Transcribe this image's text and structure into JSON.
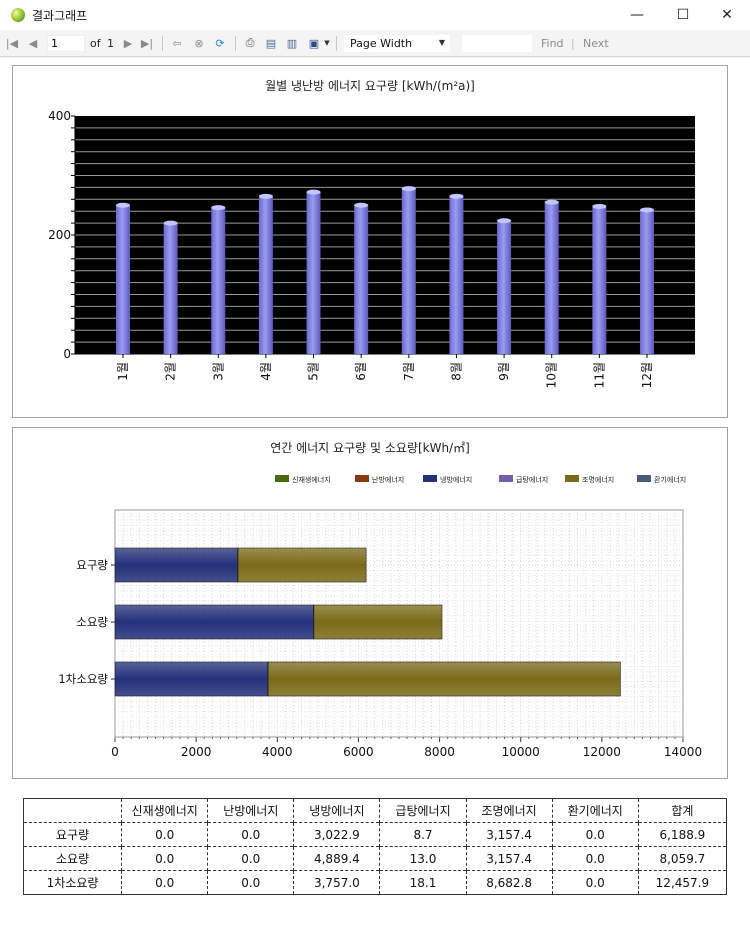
{
  "window": {
    "title": "결과그래프",
    "controls": {
      "minimize": "—",
      "maximize": "☐",
      "close": "✕"
    }
  },
  "toolbar": {
    "page_value": "1",
    "of_label": "of",
    "total_pages": "1",
    "zoom": "Page Width",
    "find_label": "Find",
    "next_label": "Next",
    "icons": [
      "first-page-icon",
      "prev-page-icon",
      "next-page-icon",
      "last-page-icon",
      "back-icon",
      "stop-icon",
      "refresh-icon",
      "print-icon",
      "page-layout-icon",
      "page-setup-icon",
      "export-icon"
    ]
  },
  "colors": {
    "bar_fill": "#9b9bf0",
    "plot_bg": "#000000",
    "series": [
      "#4a6a10",
      "#8b3a10",
      "#24307a",
      "#7060a8",
      "#7a6a18",
      "#4a5a78"
    ]
  },
  "chart1": {
    "title": "월별 냉난방 에너지 요구량 [kWh/(m²a)]",
    "y_ticks": [
      "400",
      "200",
      "0"
    ]
  },
  "chart2": {
    "title": "연간 에너지 요구량 및 소요량[kWh/㎡]",
    "legend": [
      "신재생에너지",
      "난방에너지",
      "냉방에너지",
      "급탕에너지",
      "조명에너지",
      "환기에너지"
    ],
    "x_ticks": [
      "0",
      "2000",
      "4000",
      "6000",
      "8000",
      "10000",
      "12000",
      "14000"
    ]
  },
  "chart_data": [
    {
      "type": "bar",
      "title": "월별 냉난방 에너지 요구량 [kWh/(m²a)]",
      "categories": [
        "1월",
        "2월",
        "3월",
        "4월",
        "5월",
        "6월",
        "7월",
        "8월",
        "9월",
        "10월",
        "11월",
        "12월"
      ],
      "values": [
        250,
        220,
        246,
        265,
        272,
        250,
        278,
        265,
        224,
        255,
        248,
        242
      ],
      "ylim": [
        0,
        400
      ],
      "grid": true
    },
    {
      "type": "bar",
      "orientation": "horizontal",
      "stacked": true,
      "title": "연간 에너지 요구량 및 소요량[kWh/㎡]",
      "categories": [
        "요구량",
        "소요량",
        "1차소요량"
      ],
      "series": [
        {
          "name": "신재생에너지",
          "values": [
            0.0,
            0.0,
            0.0
          ]
        },
        {
          "name": "난방에너지",
          "values": [
            0.0,
            0.0,
            0.0
          ]
        },
        {
          "name": "냉방에너지",
          "values": [
            3022.9,
            4889.4,
            3757.0
          ]
        },
        {
          "name": "급탕에너지",
          "values": [
            8.7,
            13.0,
            18.1
          ]
        },
        {
          "name": "조명에너지",
          "values": [
            3157.4,
            3157.4,
            8682.8
          ]
        },
        {
          "name": "환기에너지",
          "values": [
            0.0,
            0.0,
            0.0
          ]
        }
      ],
      "xlim": [
        0,
        14000
      ],
      "legend_position": "top-right",
      "grid": true
    }
  ],
  "table": {
    "headers": [
      "",
      "신재생에너지",
      "난방에너지",
      "냉방에너지",
      "급탕에너지",
      "조명에너지",
      "환기에너지",
      "합계"
    ],
    "rows": [
      [
        "요구량",
        "0.0",
        "0.0",
        "3,022.9",
        "8.7",
        "3,157.4",
        "0.0",
        "6,188.9"
      ],
      [
        "소요량",
        "0.0",
        "0.0",
        "4,889.4",
        "13.0",
        "3,157.4",
        "0.0",
        "8,059.7"
      ],
      [
        "1차소요량",
        "0.0",
        "0.0",
        "3,757.0",
        "18.1",
        "8,682.8",
        "0.0",
        "12,457.9"
      ]
    ]
  }
}
